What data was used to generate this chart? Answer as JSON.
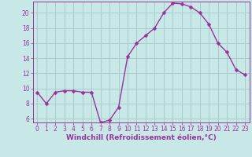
{
  "x": [
    0,
    1,
    2,
    3,
    4,
    5,
    6,
    7,
    8,
    9,
    10,
    11,
    12,
    13,
    14,
    15,
    16,
    17,
    18,
    19,
    20,
    21,
    22,
    23
  ],
  "y": [
    9.5,
    8.0,
    9.5,
    9.7,
    9.7,
    9.5,
    9.5,
    5.5,
    5.8,
    7.5,
    14.2,
    16.0,
    17.0,
    18.0,
    20.0,
    21.3,
    21.2,
    20.8,
    20.0,
    18.5,
    16.0,
    14.8,
    12.5,
    11.8
  ],
  "color": "#993399",
  "bg_color": "#c8e8e8",
  "grid_color": "#aacccc",
  "xlabel": "Windchill (Refroidissement éolien,°C)",
  "xlim": [
    -0.5,
    23.5
  ],
  "ylim": [
    5.5,
    21.5
  ],
  "yticks": [
    6,
    8,
    10,
    12,
    14,
    16,
    18,
    20
  ],
  "xticks": [
    0,
    1,
    2,
    3,
    4,
    5,
    6,
    7,
    8,
    9,
    10,
    11,
    12,
    13,
    14,
    15,
    16,
    17,
    18,
    19,
    20,
    21,
    22,
    23
  ],
  "xlabel_fontsize": 6.5,
  "tick_fontsize": 5.5,
  "line_width": 1.0,
  "marker_size": 2.5
}
